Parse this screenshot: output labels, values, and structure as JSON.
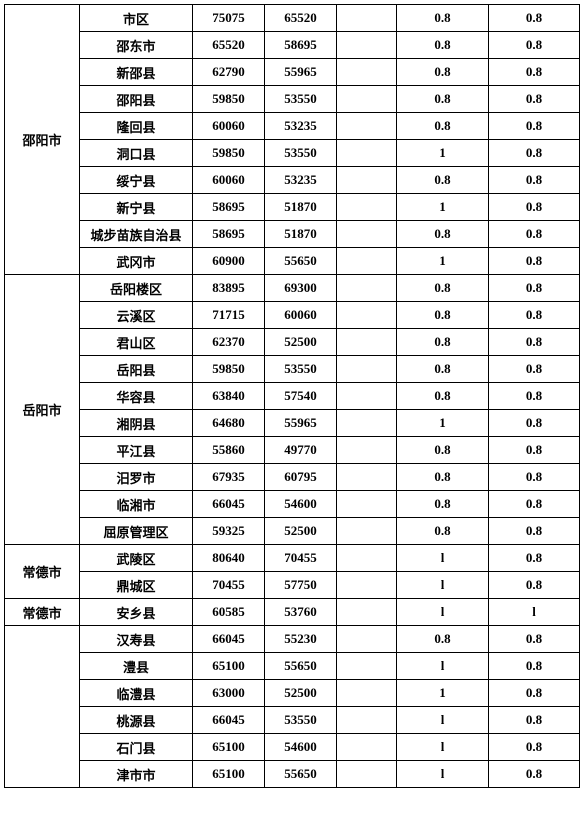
{
  "columns": {
    "widths": [
      75,
      113,
      72,
      72,
      60,
      92,
      91
    ]
  },
  "groups": [
    {
      "city": "邵阳市",
      "rows": [
        {
          "district": "市区",
          "n1": "75075",
          "n2": "65520",
          "n3": "",
          "n4": "0.8",
          "n5": "0.8"
        },
        {
          "district": "邵东市",
          "n1": "65520",
          "n2": "58695",
          "n3": "",
          "n4": "0.8",
          "n5": "0.8"
        },
        {
          "district": "新邵县",
          "n1": "62790",
          "n2": "55965",
          "n3": "",
          "n4": "0.8",
          "n5": "0.8"
        },
        {
          "district": "邵阳县",
          "n1": "59850",
          "n2": "53550",
          "n3": "",
          "n4": "0.8",
          "n5": "0.8"
        },
        {
          "district": "隆回县",
          "n1": "60060",
          "n2": "53235",
          "n3": "",
          "n4": "0.8",
          "n5": "0.8"
        },
        {
          "district": "洞口县",
          "n1": "59850",
          "n2": "53550",
          "n3": "",
          "n4": "1",
          "n5": "0.8"
        },
        {
          "district": "绥宁县",
          "n1": "60060",
          "n2": "53235",
          "n3": "",
          "n4": "0.8",
          "n5": "0.8"
        },
        {
          "district": "新宁县",
          "n1": "58695",
          "n2": "51870",
          "n3": "",
          "n4": "1",
          "n5": "0.8"
        },
        {
          "district": "城步苗族自治县",
          "n1": "58695",
          "n2": "51870",
          "n3": "",
          "n4": "0.8",
          "n5": "0.8"
        },
        {
          "district": "武冈市",
          "n1": "60900",
          "n2": "55650",
          "n3": "",
          "n4": "1",
          "n5": "0.8"
        }
      ]
    },
    {
      "city": "岳阳市",
      "rows": [
        {
          "district": "岳阳楼区",
          "n1": "83895",
          "n2": "69300",
          "n3": "",
          "n4": "0.8",
          "n5": "0.8"
        },
        {
          "district": "云溪区",
          "n1": "71715",
          "n2": "60060",
          "n3": "",
          "n4": "0.8",
          "n5": "0.8"
        },
        {
          "district": "君山区",
          "n1": "62370",
          "n2": "52500",
          "n3": "",
          "n4": "0.8",
          "n5": "0.8"
        },
        {
          "district": "岳阳县",
          "n1": "59850",
          "n2": "53550",
          "n3": "",
          "n4": "0.8",
          "n5": "0.8"
        },
        {
          "district": "华容县",
          "n1": "63840",
          "n2": "57540",
          "n3": "",
          "n4": "0.8",
          "n5": "0.8"
        },
        {
          "district": "湘阴县",
          "n1": "64680",
          "n2": "55965",
          "n3": "",
          "n4": "1",
          "n5": "0.8"
        },
        {
          "district": "平江县",
          "n1": "55860",
          "n2": "49770",
          "n3": "",
          "n4": "0.8",
          "n5": "0.8"
        },
        {
          "district": "汨罗市",
          "n1": "67935",
          "n2": "60795",
          "n3": "",
          "n4": "0.8",
          "n5": "0.8"
        },
        {
          "district": "临湘市",
          "n1": "66045",
          "n2": "54600",
          "n3": "",
          "n4": "0.8",
          "n5": "0.8"
        },
        {
          "district": "屈原管理区",
          "n1": "59325",
          "n2": "52500",
          "n3": "",
          "n4": "0.8",
          "n5": "0.8"
        }
      ]
    },
    {
      "city": "常德市",
      "rows": [
        {
          "district": "武陵区",
          "n1": "80640",
          "n2": "70455",
          "n3": "",
          "n4": "l",
          "n5": "0.8"
        },
        {
          "district": "鼎城区",
          "n1": "70455",
          "n2": "57750",
          "n3": "",
          "n4": "l",
          "n5": "0.8"
        }
      ]
    },
    {
      "city": "常德市",
      "rows": [
        {
          "district": "安乡县",
          "n1": "60585",
          "n2": "53760",
          "n3": "",
          "n4": "l",
          "n5": "l"
        }
      ]
    },
    {
      "city": "",
      "rows": [
        {
          "district": "汉寿县",
          "n1": "66045",
          "n2": "55230",
          "n3": "",
          "n4": "0.8",
          "n5": "0.8"
        },
        {
          "district": "澧县",
          "n1": "65100",
          "n2": "55650",
          "n3": "",
          "n4": "l",
          "n5": "0.8"
        },
        {
          "district": "临澧县",
          "n1": "63000",
          "n2": "52500",
          "n3": "",
          "n4": "1",
          "n5": "0.8"
        },
        {
          "district": "桃源县",
          "n1": "66045",
          "n2": "53550",
          "n3": "",
          "n4": "l",
          "n5": "0.8"
        },
        {
          "district": "石门县",
          "n1": "65100",
          "n2": "54600",
          "n3": "",
          "n4": "l",
          "n5": "0.8"
        },
        {
          "district": "津市市",
          "n1": "65100",
          "n2": "55650",
          "n3": "",
          "n4": "l",
          "n5": "0.8"
        }
      ]
    }
  ]
}
